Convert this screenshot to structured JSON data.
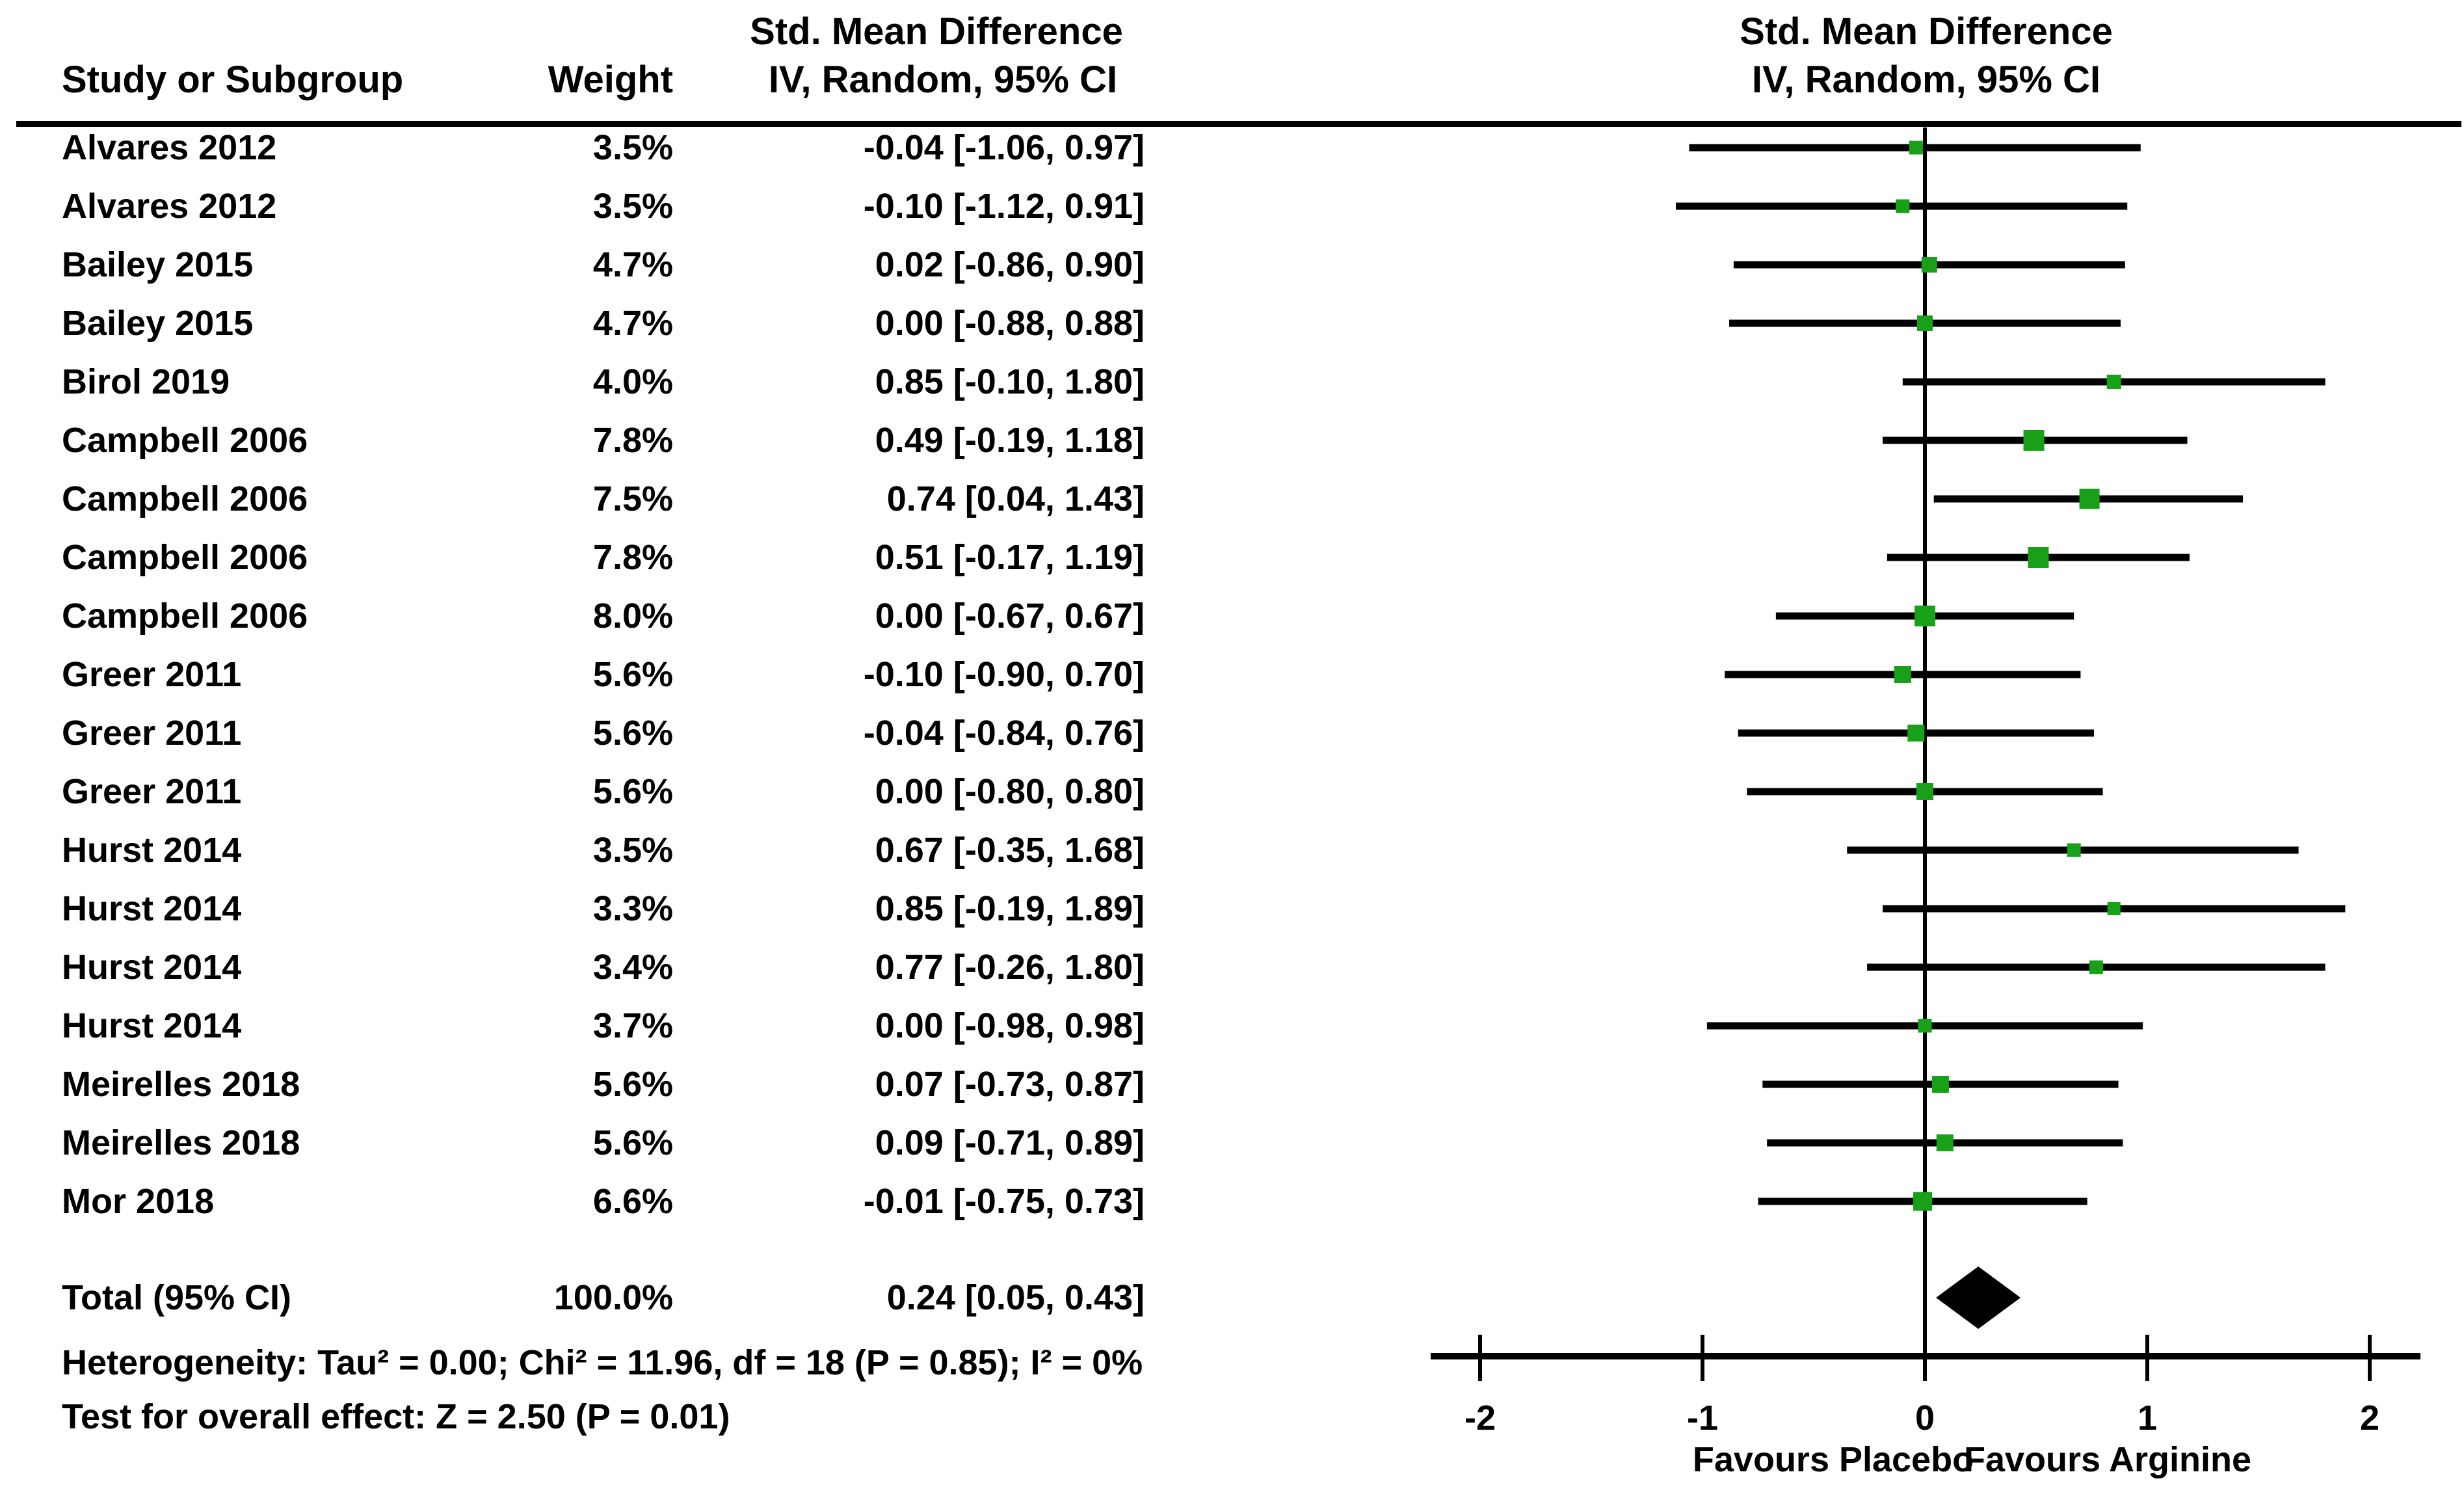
{
  "header": {
    "study_col": "Study or Subgroup",
    "weight_col": "Weight",
    "effect_col_line1": "Std. Mean Difference",
    "effect_col_line2": "IV, Random, 95% CI",
    "plot_col_line1": "Std. Mean Difference",
    "plot_col_line2": "IV, Random, 95% CI"
  },
  "chart_data": {
    "type": "forest",
    "title": "",
    "x_axis": {
      "min": -2,
      "max": 2,
      "ticks": [
        -2,
        -1,
        0,
        1,
        2
      ],
      "tick_labels": [
        "-2",
        "-1",
        "0",
        "1",
        "2"
      ],
      "left_label": "Favours Placebo",
      "right_label": "Favours Arginine"
    },
    "studies": [
      {
        "name": "Alvares 2012",
        "weight_label": "3.5%",
        "weight_pct": 3.5,
        "ci_label": "-0.04 [-1.06, 0.97]",
        "est": -0.04,
        "lo": -1.06,
        "hi": 0.97
      },
      {
        "name": "Alvares 2012",
        "weight_label": "3.5%",
        "weight_pct": 3.5,
        "ci_label": "-0.10 [-1.12, 0.91]",
        "est": -0.1,
        "lo": -1.12,
        "hi": 0.91
      },
      {
        "name": "Bailey 2015",
        "weight_label": "4.7%",
        "weight_pct": 4.7,
        "ci_label": "0.02 [-0.86, 0.90]",
        "est": 0.02,
        "lo": -0.86,
        "hi": 0.9
      },
      {
        "name": "Bailey 2015",
        "weight_label": "4.7%",
        "weight_pct": 4.7,
        "ci_label": "0.00 [-0.88, 0.88]",
        "est": 0.0,
        "lo": -0.88,
        "hi": 0.88
      },
      {
        "name": "Birol 2019",
        "weight_label": "4.0%",
        "weight_pct": 4.0,
        "ci_label": "0.85 [-0.10, 1.80]",
        "est": 0.85,
        "lo": -0.1,
        "hi": 1.8
      },
      {
        "name": "Campbell 2006",
        "weight_label": "7.8%",
        "weight_pct": 7.8,
        "ci_label": "0.49 [-0.19, 1.18]",
        "est": 0.49,
        "lo": -0.19,
        "hi": 1.18
      },
      {
        "name": "Campbell 2006",
        "weight_label": "7.5%",
        "weight_pct": 7.5,
        "ci_label": "0.74 [0.04, 1.43]",
        "est": 0.74,
        "lo": 0.04,
        "hi": 1.43
      },
      {
        "name": "Campbell 2006",
        "weight_label": "7.8%",
        "weight_pct": 7.8,
        "ci_label": "0.51 [-0.17, 1.19]",
        "est": 0.51,
        "lo": -0.17,
        "hi": 1.19
      },
      {
        "name": "Campbell 2006",
        "weight_label": "8.0%",
        "weight_pct": 8.0,
        "ci_label": "0.00 [-0.67, 0.67]",
        "est": 0.0,
        "lo": -0.67,
        "hi": 0.67
      },
      {
        "name": "Greer 2011",
        "weight_label": "5.6%",
        "weight_pct": 5.6,
        "ci_label": "-0.10 [-0.90, 0.70]",
        "est": -0.1,
        "lo": -0.9,
        "hi": 0.7
      },
      {
        "name": "Greer 2011",
        "weight_label": "5.6%",
        "weight_pct": 5.6,
        "ci_label": "-0.04 [-0.84, 0.76]",
        "est": -0.04,
        "lo": -0.84,
        "hi": 0.76
      },
      {
        "name": "Greer 2011",
        "weight_label": "5.6%",
        "weight_pct": 5.6,
        "ci_label": "0.00 [-0.80, 0.80]",
        "est": 0.0,
        "lo": -0.8,
        "hi": 0.8
      },
      {
        "name": "Hurst 2014",
        "weight_label": "3.5%",
        "weight_pct": 3.5,
        "ci_label": "0.67 [-0.35, 1.68]",
        "est": 0.67,
        "lo": -0.35,
        "hi": 1.68
      },
      {
        "name": "Hurst 2014",
        "weight_label": "3.3%",
        "weight_pct": 3.3,
        "ci_label": "0.85 [-0.19, 1.89]",
        "est": 0.85,
        "lo": -0.19,
        "hi": 1.89
      },
      {
        "name": "Hurst 2014",
        "weight_label": "3.4%",
        "weight_pct": 3.4,
        "ci_label": "0.77 [-0.26, 1.80]",
        "est": 0.77,
        "lo": -0.26,
        "hi": 1.8
      },
      {
        "name": "Hurst 2014",
        "weight_label": "3.7%",
        "weight_pct": 3.7,
        "ci_label": "0.00 [-0.98, 0.98]",
        "est": 0.0,
        "lo": -0.98,
        "hi": 0.98
      },
      {
        "name": "Meirelles 2018",
        "weight_label": "5.6%",
        "weight_pct": 5.6,
        "ci_label": "0.07 [-0.73, 0.87]",
        "est": 0.07,
        "lo": -0.73,
        "hi": 0.87
      },
      {
        "name": "Meirelles 2018",
        "weight_label": "5.6%",
        "weight_pct": 5.6,
        "ci_label": "0.09 [-0.71, 0.89]",
        "est": 0.09,
        "lo": -0.71,
        "hi": 0.89
      },
      {
        "name": "Mor 2018",
        "weight_label": "6.6%",
        "weight_pct": 6.6,
        "ci_label": "-0.01 [-0.75, 0.73]",
        "est": -0.01,
        "lo": -0.75,
        "hi": 0.73
      }
    ],
    "total": {
      "label": "Total (95% CI)",
      "weight_label": "100.0%",
      "ci_label": "0.24 [0.05, 0.43]",
      "est": 0.24,
      "lo": 0.05,
      "hi": 0.43
    },
    "heterogeneity": "Heterogeneity: Tau² = 0.00; Chi² = 11.96, df = 18 (P = 0.85); I² = 0%",
    "overall_effect": "Test for overall effect: Z = 2.50 (P = 0.01)",
    "marker_color": "#18A018",
    "line_color": "#000000",
    "diamond_color": "#000000"
  }
}
